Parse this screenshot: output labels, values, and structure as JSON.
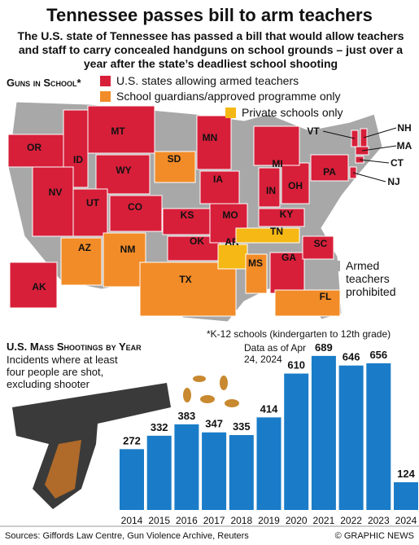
{
  "header": {
    "title": "Tennessee passes bill to arm teachers",
    "subtitle": "The U.S. state of Tennessee has passed a bill that would allow teachers and staff to carry concealed handguns on school grounds – just over a year after the state’s deadliest school shooting"
  },
  "map": {
    "title": "Guns in School*",
    "legend": [
      {
        "label": "U.S. states allowing armed teachers",
        "color": "#d71f3a"
      },
      {
        "label": "School guardians/approved programme only",
        "color": "#f28c28"
      },
      {
        "label": "Private schools only",
        "color": "#f5b814"
      },
      {
        "label": "Armed teachers prohibited",
        "color": "#a8a8a8"
      }
    ],
    "states": [
      {
        "label": "OR",
        "status": 0
      },
      {
        "label": "ID",
        "status": 0
      },
      {
        "label": "MT",
        "status": 0
      },
      {
        "label": "WY",
        "status": 0
      },
      {
        "label": "NV",
        "status": 0
      },
      {
        "label": "UT",
        "status": 0
      },
      {
        "label": "CO",
        "status": 0
      },
      {
        "label": "AZ",
        "status": 1
      },
      {
        "label": "NM",
        "status": 1
      },
      {
        "label": "SD",
        "status": 1
      },
      {
        "label": "KS",
        "status": 0
      },
      {
        "label": "OK",
        "status": 0
      },
      {
        "label": "TX",
        "status": 1
      },
      {
        "label": "MN",
        "status": 0
      },
      {
        "label": "IA",
        "status": 0
      },
      {
        "label": "MO",
        "status": 0
      },
      {
        "label": "AR",
        "status": 2
      },
      {
        "label": "MS",
        "status": 1
      },
      {
        "label": "TN",
        "status": 2
      },
      {
        "label": "KY",
        "status": 0
      },
      {
        "label": "IN",
        "status": 0
      },
      {
        "label": "OH",
        "status": 0
      },
      {
        "label": "MI",
        "status": 0
      },
      {
        "label": "PA",
        "status": 0
      },
      {
        "label": "GA",
        "status": 0
      },
      {
        "label": "SC",
        "status": 0
      },
      {
        "label": "FL",
        "status": 1
      },
      {
        "label": "AK",
        "status": 0
      },
      {
        "label": "VT",
        "status": 0
      },
      {
        "label": "NH",
        "status": 0
      },
      {
        "label": "MA",
        "status": 0
      },
      {
        "label": "CT",
        "status": 0
      },
      {
        "label": "NJ",
        "status": 0
      }
    ],
    "footnote": "*K-12 schools (kindergarten to 12th grade)"
  },
  "chart_data": {
    "type": "bar",
    "title": "U.S. Mass Shootings by Year",
    "subtitle": "Incidents where at least four people are shot, excluding shooter",
    "annotation": "Data as of Apr 24, 2024",
    "categories": [
      "2014",
      "2015",
      "2016",
      "2017",
      "2018",
      "2019",
      "2020",
      "2021",
      "2022",
      "2023",
      "2024"
    ],
    "values": [
      272,
      332,
      383,
      347,
      335,
      414,
      610,
      689,
      646,
      656,
      124
    ],
    "color": "#1a7cc8"
  },
  "footer": {
    "sources": "Sources: Giffords Law Centre, Gun Violence Archive, Reuters",
    "credit": "© GRAPHIC NEWS"
  }
}
